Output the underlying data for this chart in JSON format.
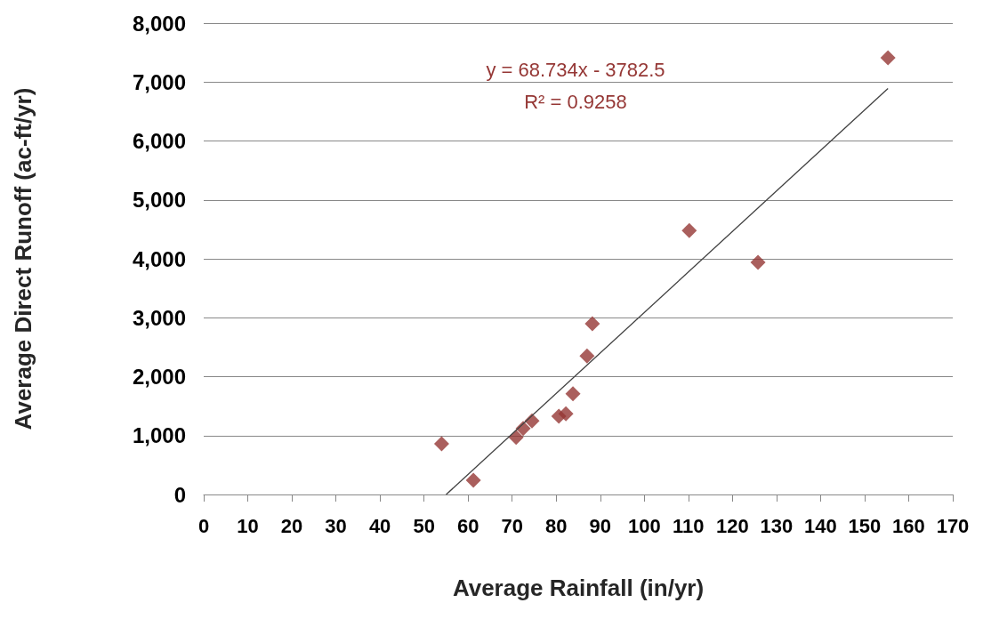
{
  "chart_data": {
    "type": "scatter",
    "xlabel": "Average Rainfall (in/yr)",
    "ylabel": "Average Direct Runoff (ac-ft/yr)",
    "annotations": [
      "y = 68.734x - 3782.5",
      "R² = 0.9258"
    ],
    "series": [
      {
        "color": "#953735",
        "marker": "diamond",
        "x": [
          54,
          61.2,
          70.9,
          72.5,
          74.5,
          80.6,
          82.2,
          83.8,
          87,
          88.2,
          110.2,
          125.8,
          155.3
        ],
        "values": [
          860,
          240,
          970,
          1120,
          1250,
          1330,
          1370,
          1710,
          2350,
          2900,
          4480,
          3940,
          7410
        ]
      },
      {
        "type": "line",
        "color": "#404040",
        "marker": "none",
        "x": [
          55.03,
          155.3
        ],
        "values": [
          0,
          6890
        ]
      }
    ],
    "xlim": [
      0,
      170
    ],
    "xticks": [
      0,
      10,
      20,
      30,
      40,
      50,
      60,
      70,
      80,
      90,
      100,
      110,
      120,
      130,
      140,
      150,
      160,
      170
    ],
    "ylim": [
      0,
      8000
    ],
    "yticks": [
      0,
      {
        "value": 1000,
        "label": "1,000"
      },
      {
        "value": 2000,
        "label": "2,000"
      },
      {
        "value": 3000,
        "label": "3,000"
      },
      {
        "value": 4000,
        "label": "4,000"
      },
      {
        "value": 5000,
        "label": "5,000"
      },
      {
        "value": 6000,
        "label": "6,000"
      },
      {
        "value": 7000,
        "label": "7,000"
      },
      {
        "value": 8000,
        "label": "8,000"
      }
    ],
    "grid": "y"
  }
}
